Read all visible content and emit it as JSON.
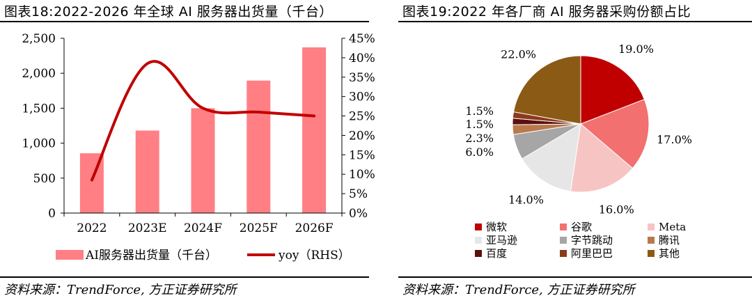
{
  "left": {
    "title": "图表18:2022-2026 年全球 AI 服务器出货量（千台）",
    "source": "资料来源：TrendForce, 方正证券研究所",
    "chart_data": {
      "type": "bar",
      "categories": [
        "2022",
        "2023E",
        "2024F",
        "2025F",
        "2026F"
      ],
      "series": [
        {
          "name": "AI服务器出货量（千台）",
          "type": "bar",
          "axis": "left",
          "color": "#FF7F84",
          "values": [
            855,
            1180,
            1500,
            1895,
            2370
          ]
        },
        {
          "name": "yoy（RHS）",
          "type": "line",
          "axis": "right",
          "color": "#C00000",
          "values": [
            8.5,
            38.5,
            27.0,
            26.0,
            25.0
          ]
        }
      ],
      "y_left": {
        "range": [
          0,
          2500
        ],
        "ticks": [
          "0",
          "500",
          "1,000",
          "1,500",
          "2,000",
          "2,500"
        ]
      },
      "y_right": {
        "range": [
          0,
          45
        ],
        "ticks": [
          "0%",
          "5%",
          "10%",
          "15%",
          "20%",
          "25%",
          "30%",
          "35%",
          "40%",
          "45%"
        ]
      },
      "grid": false,
      "legend_position": "bottom"
    }
  },
  "right": {
    "title": "图表19:2022 年各厂商 AI 服务器采购份额占比",
    "source": "资料来源：TrendForce, 方正证券研究所",
    "chart_data": {
      "type": "pie",
      "slices": [
        {
          "label": "微软",
          "value": 19.0,
          "display": "19.0%",
          "color": "#C00000"
        },
        {
          "label": "谷歌",
          "value": 17.0,
          "display": "17.0%",
          "color": "#F27070"
        },
        {
          "label": "Meta",
          "value": 16.0,
          "display": "16.0%",
          "color": "#F7C4C4"
        },
        {
          "label": "亚马逊",
          "value": 14.0,
          "display": "14.0%",
          "color": "#E6E6E6"
        },
        {
          "label": "字节跳动",
          "value": 6.0,
          "display": "6.0%",
          "color": "#A6A6A6"
        },
        {
          "label": "腾讯",
          "value": 2.3,
          "display": "2.3%",
          "color": "#B87A4B"
        },
        {
          "label": "百度",
          "value": 1.5,
          "display": "1.5%",
          "color": "#5C1010"
        },
        {
          "label": "阿里巴巴",
          "value": 1.5,
          "display": "1.5%",
          "color": "#8B3A1A"
        },
        {
          "label": "其他",
          "value": 22.0,
          "display": "22.0%",
          "color": "#8B5A14"
        }
      ],
      "legend_position": "bottom",
      "legend_order": [
        "微软",
        "谷歌",
        "Meta",
        "亚马逊",
        "字节跳动",
        "腾讯",
        "百度",
        "阿里巴巴",
        "其他"
      ]
    }
  }
}
